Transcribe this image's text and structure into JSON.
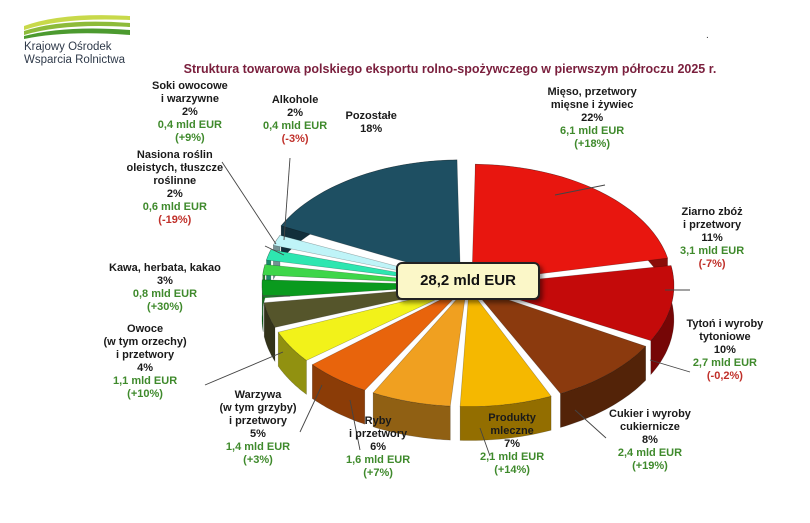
{
  "header": {
    "org_line1": "Krajowy Ośrodek",
    "org_line2": "Wsparcia Rolnictwa",
    "logo_colors": [
      "#c8d94a",
      "#8dbb3a",
      "#4c9a2f"
    ]
  },
  "chart_data": {
    "type": "pie",
    "title": "Struktura towarowa polskiego eksportu rolno-spożywczego w pierwszym półroczu 2025 r.",
    "total_label": "28,2 mld EUR",
    "legend": "none",
    "slices": [
      {
        "name": "Mięso, przetwory mięsne i żywiec",
        "name_lines": [
          "Mięso, przetwory",
          "mięsne i żywiec"
        ],
        "pct": 22,
        "pct_label": "22%",
        "value_label": "6,1 mld EUR",
        "change": "(+18%)",
        "color": "#e8160f"
      },
      {
        "name": "Ziarno zbóż i przetwory",
        "name_lines": [
          "Ziarno zbóż",
          "i przetwory"
        ],
        "pct": 11,
        "pct_label": "11%",
        "value_label": "3,1 mld EUR",
        "change": "(-7%)",
        "color": "#c40a0a"
      },
      {
        "name": "Tytoń i wyroby tytoniowe",
        "name_lines": [
          "Tytoń i wyroby",
          "tytoniowe"
        ],
        "pct": 10,
        "pct_label": "10%",
        "value_label": "2,7 mld EUR",
        "change": "(-0,2%)",
        "color": "#8b3a0e"
      },
      {
        "name": "Cukier i wyroby cukiernicze",
        "name_lines": [
          "Cukier i wyroby",
          "cukiernicze"
        ],
        "pct": 8,
        "pct_label": "8%",
        "value_label": "2,4 mld EUR",
        "change": "(+19%)",
        "color": "#f5b800"
      },
      {
        "name": "Produkty mleczne",
        "name_lines": [
          "Produkty",
          "mleczne"
        ],
        "pct": 7,
        "pct_label": "7%",
        "value_label": "2,1 mld EUR",
        "change": "(+14%)",
        "color": "#f0a020"
      },
      {
        "name": "Ryby i przetwory",
        "name_lines": [
          "Ryby",
          "i przetwory"
        ],
        "pct": 6,
        "pct_label": "6%",
        "value_label": "1,6 mld EUR",
        "change": "(+7%)",
        "color": "#e8640c"
      },
      {
        "name": "Warzywa (w tym grzyby) i przetwory",
        "name_lines": [
          "Warzywa",
          "(w tym grzyby)",
          "i przetwory"
        ],
        "pct": 5,
        "pct_label": "5%",
        "value_label": "1,4 mld EUR",
        "change": "(+3%)",
        "color": "#f2f21a"
      },
      {
        "name": "Owoce (w tym orzechy) i przetwory",
        "name_lines": [
          "Owoce",
          "(w tym orzechy)",
          "i przetwory"
        ],
        "pct": 4,
        "pct_label": "4%",
        "value_label": "1,1 mld EUR",
        "change": "(+10%)",
        "color": "#55552b"
      },
      {
        "name": "Kawa, herbata, kakao",
        "name_lines": [
          "Kawa, herbata, kakao"
        ],
        "pct": 3,
        "pct_label": "3%",
        "value_label": "0,8 mld EUR",
        "change": "(+30%)",
        "color": "#0a9a1e"
      },
      {
        "name": "Nasiona roślin oleistych, tłuszcze roślinne",
        "name_lines": [
          "Nasiona roślin",
          "oleistych, tłuszcze",
          "roślinne"
        ],
        "pct": 2,
        "pct_label": "2%",
        "value_label": "0,6 mld EUR",
        "change": "(-19%)",
        "color": "#3ed64a"
      },
      {
        "name": "Soki owocowe i warzywne",
        "name_lines": [
          "Soki owocowe",
          "i warzywne"
        ],
        "pct": 2,
        "pct_label": "2%",
        "value_label": "0,4 mld EUR",
        "change": "(+9%)",
        "color": "#2ee6b0"
      },
      {
        "name": "Alkohole",
        "name_lines": [
          "Alkohole"
        ],
        "pct": 2,
        "pct_label": "2%",
        "value_label": "0,4 mld EUR",
        "change": "(-3%)",
        "color": "#bff4f8"
      },
      {
        "name": "Pozostałe",
        "name_lines": [
          "Pozostałe"
        ],
        "pct": 18,
        "pct_label": "18%",
        "value_label": "",
        "change": "",
        "color": "#1e4f62"
      }
    ]
  }
}
